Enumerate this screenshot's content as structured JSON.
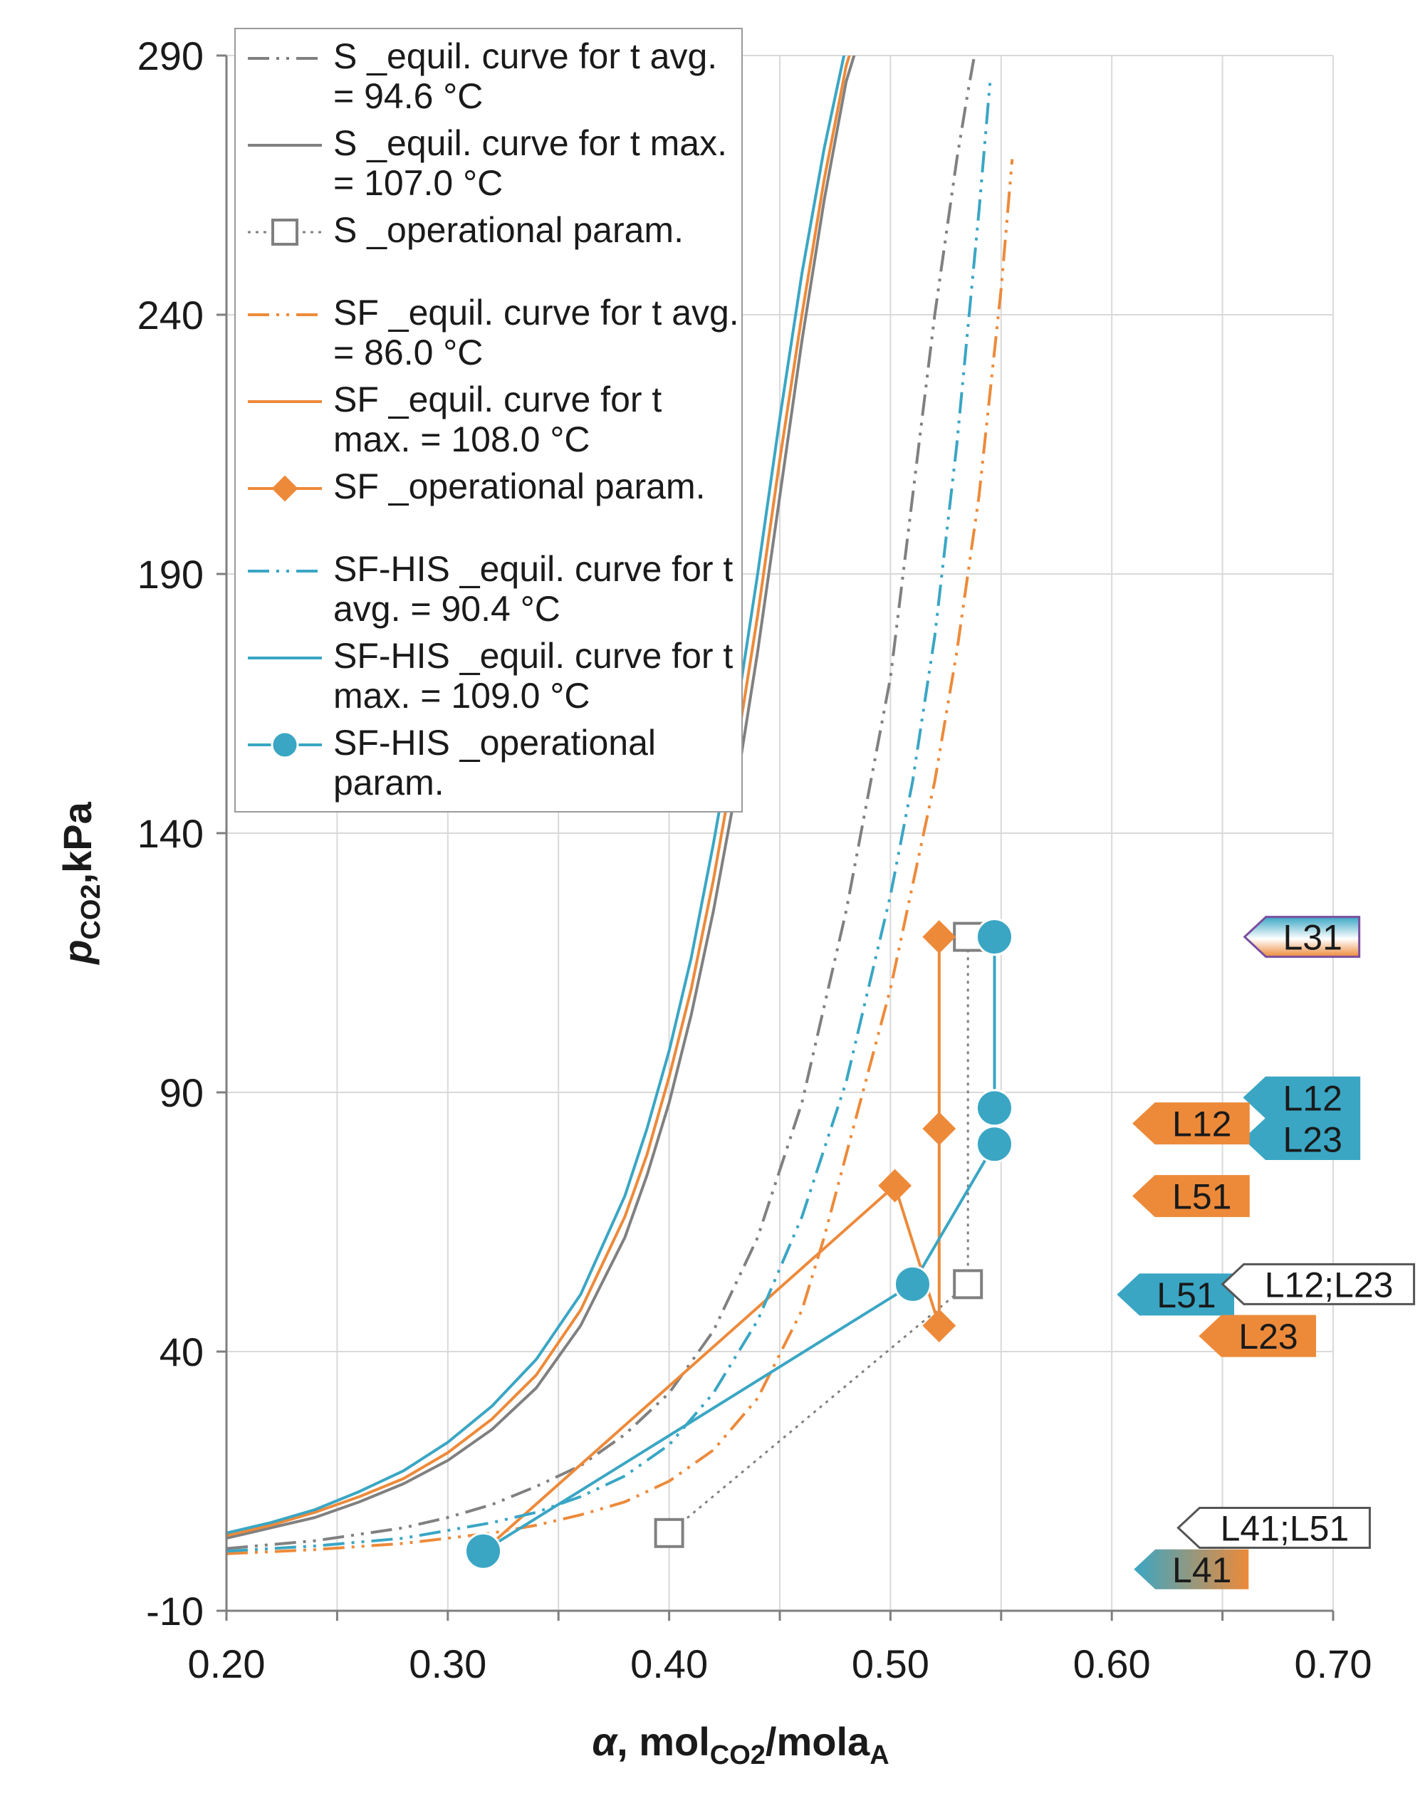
{
  "chart_data": {
    "type": "line",
    "title": "",
    "xlabel": {
      "prefix": "α",
      "mid": ", mol",
      "sub1": "CO2",
      "mid2": "/mola",
      "sub2": "A"
    },
    "ylabel": {
      "prefix": "p",
      "sub": "CO2",
      "suffix": ",kPa"
    },
    "xlim": [
      0.2,
      0.7
    ],
    "ylim": [
      -10,
      290
    ],
    "xticks": [
      "0.20",
      "0.30",
      "0.40",
      "0.50",
      "0.60",
      "0.70"
    ],
    "yticks": [
      "-10",
      "40",
      "90",
      "140",
      "190",
      "240",
      "290"
    ],
    "grid": true,
    "colors": {
      "s": "#808080",
      "sf": "#ed8a3a",
      "his": "#3aa6c4",
      "grid": "#d9d9d9",
      "axis": "#7f7f7f"
    },
    "legend": [
      {
        "lines": [
          "S _equil. curve for t avg.",
          "= 94.6 °C"
        ],
        "series": "s_avg"
      },
      {
        "lines": [
          "S _equil. curve for t max.",
          "= 107.0 °C"
        ],
        "series": "s_max"
      },
      {
        "lines": [
          "S _operational param."
        ],
        "series": "s_op"
      },
      {
        "lines": [
          "SF _equil. curve for t avg.",
          "= 86.0 °C"
        ],
        "series": "sf_avg"
      },
      {
        "lines": [
          "SF _equil. curve for t",
          "max. = 108.0 °C"
        ],
        "series": "sf_max"
      },
      {
        "lines": [
          "SF _operational param."
        ],
        "series": "sf_op"
      },
      {
        "lines": [
          "SF-HIS _equil. curve for t",
          "avg. = 90.4 °C"
        ],
        "series": "his_avg"
      },
      {
        "lines": [
          "SF-HIS _equil. curve for t",
          "max. = 109.0 °C"
        ],
        "series": "his_max"
      },
      {
        "lines": [
          "SF-HIS _operational",
          "param."
        ],
        "series": "his_op"
      }
    ],
    "series": [
      {
        "key": "s_avg",
        "name": "S _equil. curve for t avg. = 94.6 °C",
        "color": "#808080",
        "dash": "dashdotdot",
        "marker": "none",
        "x": [
          0.2,
          0.24,
          0.28,
          0.3,
          0.32,
          0.34,
          0.36,
          0.38,
          0.4,
          0.42,
          0.44,
          0.46,
          0.48,
          0.5,
          0.51,
          0.52,
          0.53,
          0.535,
          0.54
        ],
        "y": [
          2,
          3.5,
          6,
          8,
          10.5,
          14,
          18,
          24,
          32,
          44,
          62,
          88,
          125,
          170,
          205,
          240,
          270,
          283,
          295
        ]
      },
      {
        "key": "s_max",
        "name": "S _equil. curve for t max. = 107.0 °C",
        "color": "#808080",
        "dash": "solid",
        "marker": "none",
        "x": [
          0.2,
          0.22,
          0.24,
          0.26,
          0.28,
          0.3,
          0.32,
          0.34,
          0.36,
          0.38,
          0.39,
          0.4,
          0.41,
          0.42,
          0.43,
          0.44,
          0.45,
          0.46,
          0.47,
          0.48,
          0.485,
          0.49
        ],
        "y": [
          4,
          6,
          8,
          11,
          14.5,
          19,
          25,
          33,
          45,
          62,
          74,
          88,
          105,
          125,
          148,
          175,
          205,
          235,
          262,
          285,
          292,
          300
        ]
      },
      {
        "key": "s_op",
        "name": "S _operational param.",
        "color": "#808080",
        "dash": "dotted",
        "marker": "square",
        "x": [
          0.4,
          0.535,
          0.535
        ],
        "y": [
          5,
          53,
          120
        ]
      },
      {
        "key": "sf_avg",
        "name": "SF _equil. curve for t avg. = 86.0 °C",
        "color": "#ed8a3a",
        "dash": "dashdotdot",
        "marker": "none",
        "x": [
          0.2,
          0.24,
          0.28,
          0.3,
          0.32,
          0.34,
          0.36,
          0.38,
          0.4,
          0.42,
          0.44,
          0.46,
          0.47,
          0.48,
          0.5,
          0.52,
          0.53,
          0.54,
          0.55,
          0.555
        ],
        "y": [
          1,
          1.8,
          3,
          4,
          5,
          6.5,
          8.5,
          11,
          15,
          21,
          31,
          48,
          62,
          78,
          110,
          150,
          175,
          205,
          245,
          270
        ]
      },
      {
        "key": "sf_max",
        "name": "SF _equil. curve for t max. = 108.0 °C",
        "color": "#ed8a3a",
        "dash": "solid",
        "marker": "none",
        "x": [
          0.2,
          0.22,
          0.24,
          0.26,
          0.28,
          0.3,
          0.32,
          0.34,
          0.36,
          0.38,
          0.39,
          0.4,
          0.41,
          0.42,
          0.43,
          0.44,
          0.45,
          0.46,
          0.47,
          0.48,
          0.485,
          0.49
        ],
        "y": [
          4.5,
          6.5,
          9,
          12,
          15.5,
          20.5,
          27,
          35.5,
          48,
          66,
          78,
          93,
          110,
          131,
          155,
          182,
          212,
          240,
          266,
          288,
          295,
          302
        ]
      },
      {
        "key": "sf_op",
        "name": "SF _operational param.",
        "color": "#ed8a3a",
        "dash": "solid",
        "marker": "diamond",
        "x": [
          0.316,
          0.502,
          0.522,
          0.522,
          0.522
        ],
        "y": [
          1.5,
          72,
          45,
          83,
          120
        ]
      },
      {
        "key": "his_avg",
        "name": "SF-HIS _equil. curve for t avg. = 90.4 °C",
        "color": "#3aa6c4",
        "dash": "dashdotdot",
        "marker": "none",
        "x": [
          0.2,
          0.24,
          0.28,
          0.3,
          0.32,
          0.34,
          0.36,
          0.38,
          0.4,
          0.42,
          0.44,
          0.46,
          0.48,
          0.5,
          0.51,
          0.52,
          0.53,
          0.54,
          0.545
        ],
        "y": [
          1.5,
          2.5,
          4,
          5.5,
          7,
          9,
          12,
          16,
          22,
          32,
          46,
          66,
          92,
          128,
          150,
          178,
          215,
          260,
          285
        ]
      },
      {
        "key": "his_max",
        "name": "SF-HIS _equil. curve for t max. = 109.0 °C",
        "color": "#3aa6c4",
        "dash": "solid",
        "marker": "none",
        "x": [
          0.2,
          0.22,
          0.24,
          0.26,
          0.28,
          0.3,
          0.32,
          0.34,
          0.36,
          0.38,
          0.39,
          0.4,
          0.41,
          0.42,
          0.43,
          0.44,
          0.45,
          0.46,
          0.47,
          0.48,
          0.485,
          0.49
        ],
        "y": [
          5,
          7,
          9.5,
          13,
          17,
          22.5,
          29.5,
          38.5,
          51,
          70,
          83,
          98,
          116,
          138,
          162,
          190,
          220,
          248,
          272,
          292,
          298,
          304
        ]
      },
      {
        "key": "his_op",
        "name": "SF-HIS _operational param.",
        "color": "#3aa6c4",
        "dash": "solid",
        "marker": "circle",
        "x": [
          0.316,
          0.51,
          0.547,
          0.547,
          0.547,
          0.547
        ],
        "y": [
          1.5,
          53,
          80,
          87,
          120,
          120
        ]
      }
    ],
    "annotations": [
      {
        "text": "L31",
        "at_x": 0.66,
        "at_y": 120,
        "style": "his-gradient"
      },
      {
        "text": "L12",
        "at_x": 0.66,
        "at_y": 89,
        "style": "his"
      },
      {
        "text": "L23",
        "at_x": 0.66,
        "at_y": 81,
        "style": "his"
      },
      {
        "text": "L12",
        "at_x": 0.61,
        "at_y": 84,
        "style": "sf"
      },
      {
        "text": "L51",
        "at_x": 0.61,
        "at_y": 70,
        "style": "sf"
      },
      {
        "text": "L51",
        "at_x": 0.603,
        "at_y": 51,
        "style": "his"
      },
      {
        "text": "L12;L23",
        "at_x": 0.65,
        "at_y": 53,
        "style": "s"
      },
      {
        "text": "L23",
        "at_x": 0.64,
        "at_y": 43,
        "style": "sf"
      },
      {
        "text": "L41;L51",
        "at_x": 0.63,
        "at_y": 6,
        "style": "s"
      },
      {
        "text": "L41",
        "at_x": 0.61,
        "at_y": -2,
        "style": "gradient"
      }
    ]
  }
}
